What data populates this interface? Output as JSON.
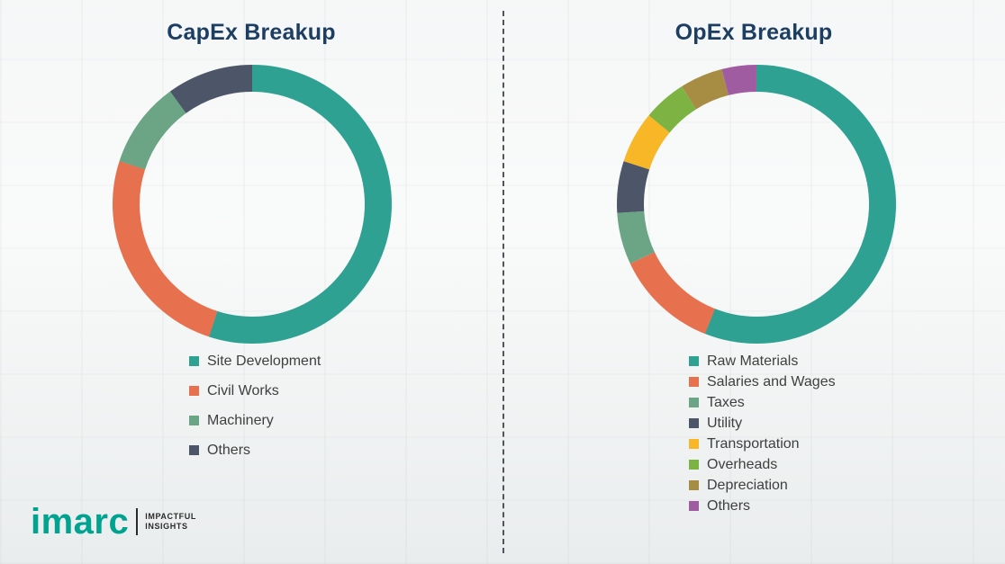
{
  "chart_data": [
    {
      "type": "pie",
      "subtype": "donut",
      "title": "CapEx Breakup",
      "labels": [
        "Site Development",
        "Civil Works",
        "Machinery",
        "Others"
      ],
      "values": [
        55,
        25,
        10,
        10
      ],
      "colors": [
        "#2ea192",
        "#e7704e",
        "#6ba585",
        "#4d5668"
      ],
      "legend_position": "below-left",
      "data_labels_shown": false
    },
    {
      "type": "pie",
      "subtype": "donut",
      "title": "OpEx Breakup",
      "labels": [
        "Raw Materials",
        "Salaries and Wages",
        "Taxes",
        "Utility",
        "Transportation",
        "Overheads",
        "Depreciation",
        "Others"
      ],
      "values": [
        56,
        12,
        6,
        6,
        6,
        5,
        5,
        4
      ],
      "colors": [
        "#2ea192",
        "#e7704e",
        "#6ba585",
        "#4d5668",
        "#f7b727",
        "#7cb342",
        "#a78d44",
        "#a05ca0"
      ],
      "legend_position": "below-left",
      "data_labels_shown": false
    }
  ],
  "heading_color": "#1d3e63",
  "logo": {
    "brand": "imarc",
    "brand_color": "#00a390",
    "tagline": [
      "IMPACTFUL",
      "INSIGHTS"
    ]
  }
}
